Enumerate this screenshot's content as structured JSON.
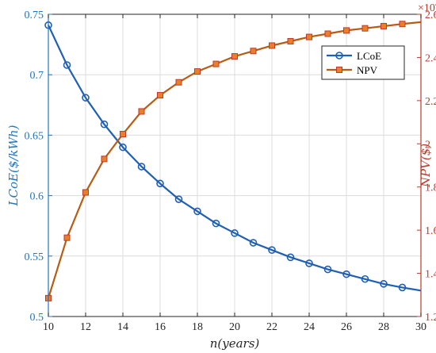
{
  "chart_data": {
    "type": "line",
    "x": [
      10,
      11,
      12,
      13,
      14,
      15,
      16,
      17,
      18,
      19,
      20,
      21,
      22,
      23,
      24,
      25,
      26,
      27,
      28,
      29,
      30
    ],
    "xlabel": "n(years)",
    "xlim": [
      10,
      30
    ],
    "xticks": [
      "10",
      "12",
      "14",
      "16",
      "18",
      "20",
      "22",
      "24",
      "26",
      "28",
      "30"
    ],
    "grid": true,
    "legend_position": "top-right",
    "series": [
      {
        "name": "LCoE",
        "axis": "left",
        "marker": "circle",
        "color": "#1f5fb4",
        "x": [
          10,
          11,
          12,
          13,
          14,
          15,
          16,
          17,
          18,
          19,
          20,
          21,
          22,
          23,
          24,
          25,
          26,
          27,
          28,
          29
        ],
        "values": [
          0.741,
          0.708,
          0.681,
          0.659,
          0.64,
          0.624,
          0.61,
          0.597,
          0.587,
          0.577,
          0.569,
          0.561,
          0.555,
          0.549,
          0.544,
          0.539,
          0.535,
          0.531,
          0.527,
          0.524
        ]
      },
      {
        "name": "NPV",
        "axis": "right",
        "marker": "square",
        "color": "#b85c14",
        "marker_fill": "#e8802a",
        "marker_edge": "#c0392b",
        "x": [
          10,
          11,
          12,
          13,
          14,
          15,
          16,
          17,
          18,
          19,
          20,
          21,
          22,
          23,
          24,
          25,
          26,
          27,
          28,
          29
        ],
        "values": [
          12850,
          15650,
          17750,
          19300,
          20450,
          21500,
          22250,
          22850,
          23350,
          23700,
          24050,
          24300,
          24550,
          24750,
          24950,
          25100,
          25250,
          25350,
          25450,
          25550
        ]
      }
    ],
    "left_axis": {
      "label": "LCoE($/kWh)",
      "ylim": [
        0.5,
        0.75
      ],
      "ticks": [
        "0.5",
        "0.55",
        "0.6",
        "0.65",
        "0.7",
        "0.75"
      ],
      "color": "#1f77c4"
    },
    "right_axis": {
      "label": "NPV($)",
      "ylim": [
        1.2,
        2.6
      ],
      "ticks": [
        "1.2",
        "1.4",
        "1.6",
        "1.8",
        "2",
        "2.2",
        "2.4",
        "2.6"
      ],
      "exponent": "×10",
      "exponent_power": "4",
      "scale": 10000,
      "color": "#c0392b"
    }
  }
}
